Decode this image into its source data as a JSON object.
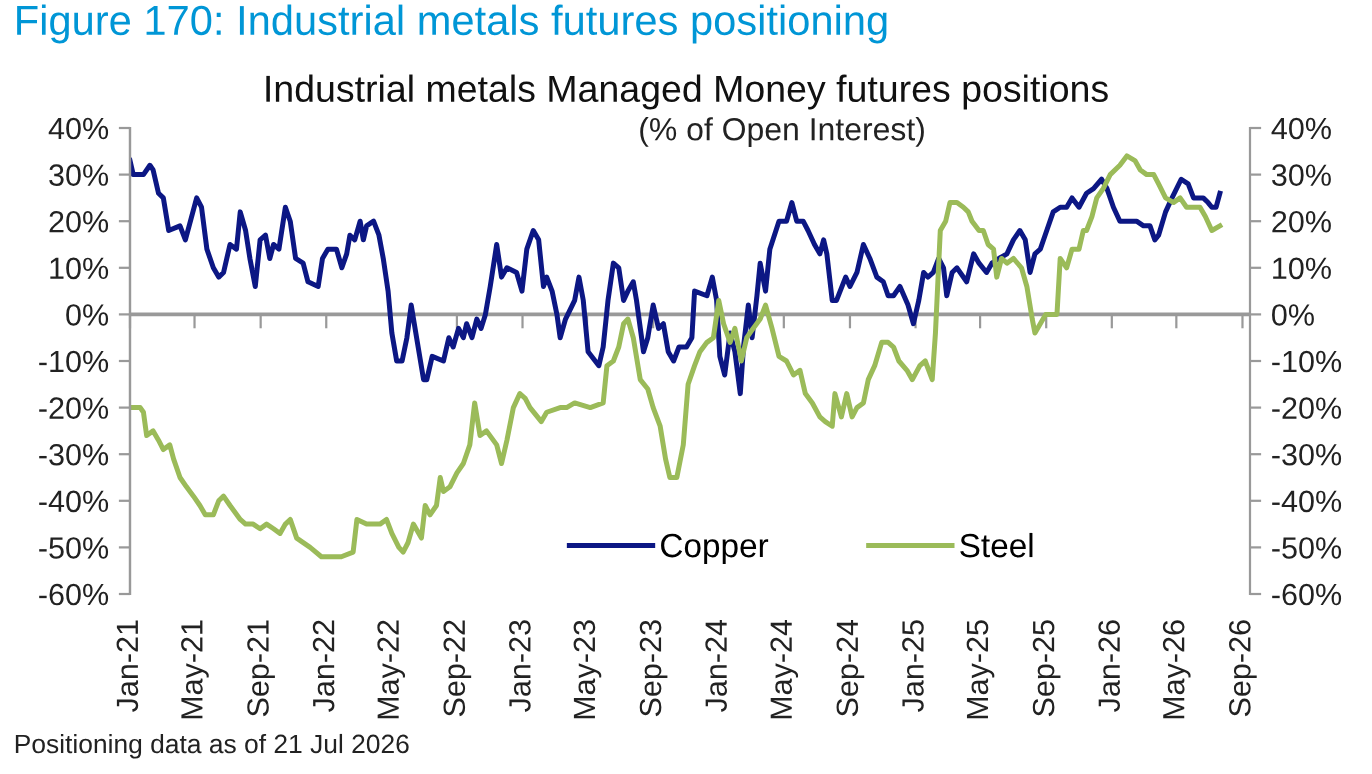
{
  "chart_data": {
    "type": "line",
    "title": "Industrial metals Managed Money futures positions",
    "subtitle": "(% of Open Interest)",
    "annotations": [
      "Figure 170: Industrial metals futures positioning",
      "Positioning data as of 21 Jul 2026"
    ],
    "series": [
      {
        "name": "Copper",
        "color": "#0c1784",
        "x": [
          "2021-01-01",
          "2021-01-07",
          "2021-01-26",
          "2021-02-07",
          "2021-02-13",
          "2021-02-23",
          "2021-03-04",
          "2021-03-14",
          "2021-04-04",
          "2021-04-14",
          "2021-05-05",
          "2021-05-14",
          "2021-05-24",
          "2021-06-05",
          "2021-06-15",
          "2021-06-24",
          "2021-07-06",
          "2021-07-18",
          "2021-07-25",
          "2021-08-04",
          "2021-08-12",
          "2021-08-22",
          "2021-08-31",
          "2021-09-10",
          "2021-09-18",
          "2021-09-25",
          "2021-10-05",
          "2021-10-17",
          "2021-10-26",
          "2021-11-05",
          "2021-11-19",
          "2021-11-28",
          "2021-12-17",
          "2021-12-25",
          "2022-01-04",
          "2022-01-20",
          "2022-01-30",
          "2022-02-08",
          "2022-02-14",
          "2022-02-23",
          "2022-03-05",
          "2022-03-11",
          "2022-03-17",
          "2022-03-30",
          "2022-04-09",
          "2022-04-17",
          "2022-04-26",
          "2022-05-03",
          "2022-05-12",
          "2022-05-22",
          "2022-05-31",
          "2022-06-08",
          "2022-06-18",
          "2022-07-01",
          "2022-07-07",
          "2022-07-17",
          "2022-08-07",
          "2022-08-17",
          "2022-08-25",
          "2022-09-04",
          "2022-09-13",
          "2022-09-19",
          "2022-09-29",
          "2022-10-08",
          "2022-10-16",
          "2022-10-24",
          "2022-11-02",
          "2022-11-14",
          "2022-11-23",
          "2022-12-03",
          "2022-12-21",
          "2022-12-31",
          "2023-01-09",
          "2023-01-21",
          "2023-01-31",
          "2023-02-09",
          "2023-02-15",
          "2023-02-25",
          "2023-03-06",
          "2023-03-12",
          "2023-03-22",
          "2023-04-08",
          "2023-04-16",
          "2023-04-24",
          "2023-05-03",
          "2023-05-23",
          "2023-05-31",
          "2023-06-09",
          "2023-06-19",
          "2023-06-29",
          "2023-07-08",
          "2023-07-16",
          "2023-07-26",
          "2023-08-01",
          "2023-08-14",
          "2023-08-22",
          "2023-09-01",
          "2023-09-11",
          "2023-09-20",
          "2023-09-29",
          "2023-10-09",
          "2023-10-19",
          "2023-11-02",
          "2023-11-12",
          "2023-11-17",
          "2023-12-10",
          "2023-12-20",
          "2023-12-28",
          "2024-01-03",
          "2024-01-12",
          "2024-01-22",
          "2024-01-31",
          "2024-02-10",
          "2024-02-16",
          "2024-02-25",
          "2024-03-03",
          "2024-03-12",
          "2024-03-18",
          "2024-03-28",
          "2024-04-05",
          "2024-04-22",
          "2024-05-06",
          "2024-05-16",
          "2024-05-25",
          "2024-06-06",
          "2024-06-15",
          "2024-06-27",
          "2024-07-07",
          "2024-07-14",
          "2024-07-20",
          "2024-07-30",
          "2024-08-07",
          "2024-08-24",
          "2024-09-01",
          "2024-09-14",
          "2024-09-26",
          "2024-10-08",
          "2024-10-21",
          "2024-11-02",
          "2024-11-11",
          "2024-11-21",
          "2024-12-03",
          "2024-12-18",
          "2024-12-28",
          "2025-01-07",
          "2025-01-16",
          "2025-01-24",
          "2025-02-03",
          "2025-02-13",
          "2025-02-22",
          "2025-02-28",
          "2025-03-10",
          "2025-03-19",
          "2025-04-06",
          "2025-04-19",
          "2025-04-29",
          "2025-05-13",
          "2025-05-23",
          "2025-06-05",
          "2025-06-20",
          "2025-07-02",
          "2025-07-14",
          "2025-07-24",
          "2025-08-02",
          "2025-08-11",
          "2025-08-21",
          "2025-09-02",
          "2025-09-14",
          "2025-09-27",
          "2025-10-09",
          "2025-10-19",
          "2025-11-01",
          "2025-11-15",
          "2025-11-28",
          "2025-12-13",
          "2025-12-23",
          "2026-01-04",
          "2026-01-16",
          "2026-01-29",
          "2026-02-16",
          "2026-03-01",
          "2026-03-13",
          "2026-03-22",
          "2026-03-29",
          "2026-04-11",
          "2026-04-23",
          "2026-05-10",
          "2026-05-23",
          "2026-06-02",
          "2026-06-20",
          "2026-06-29",
          "2026-07-06",
          "2026-07-14",
          "2026-07-21"
        ],
        "values": [
          33,
          30,
          30,
          32,
          31,
          26,
          25,
          18,
          19,
          16,
          25,
          23,
          14,
          10,
          8,
          9,
          15,
          14,
          22,
          18,
          12,
          6,
          16,
          17,
          12,
          15,
          14,
          23,
          20,
          12,
          11,
          7,
          6,
          12,
          14,
          14,
          10,
          13,
          17,
          16,
          20,
          16,
          19,
          20,
          17,
          12,
          5,
          -4,
          -10,
          -10,
          -5,
          2,
          -5,
          -14,
          -14,
          -9,
          -10,
          -5,
          -7,
          -3,
          -5,
          -2,
          -5,
          -1,
          -3,
          0,
          6,
          15,
          8,
          10,
          9,
          5,
          14,
          18,
          16,
          6,
          8,
          5,
          0,
          -5,
          -1,
          3,
          8,
          3,
          -8,
          -11,
          -7,
          3,
          11,
          10,
          3,
          5,
          7,
          3,
          -8,
          -5,
          2,
          -3,
          -2,
          -8,
          -10,
          -7,
          -7,
          -5,
          5,
          4,
          8,
          3,
          -9,
          -13,
          -4,
          -8,
          -17,
          -7,
          2,
          -5,
          4,
          11,
          5,
          14,
          20,
          20,
          24,
          20,
          20,
          18,
          15,
          13,
          16,
          13,
          3,
          3,
          8,
          6,
          9,
          15,
          12,
          8,
          7,
          4,
          4,
          6,
          2,
          -2,
          3,
          9,
          8,
          9,
          12,
          10,
          4,
          9,
          10,
          7,
          13,
          11,
          9,
          11,
          12,
          13,
          16,
          18,
          16,
          9,
          13,
          14,
          18,
          22,
          23,
          23,
          25,
          23,
          26,
          27,
          29,
          27,
          23,
          20,
          20,
          20,
          19,
          19,
          16,
          17,
          22,
          25,
          29,
          28,
          25,
          25,
          24,
          23,
          23,
          26
        ]
      },
      {
        "name": "Steel",
        "color": "#9bbb59",
        "x": [
          "2021-01-01",
          "2021-01-20",
          "2021-01-26",
          "2021-02-01",
          "2021-02-13",
          "2021-02-23",
          "2021-03-04",
          "2021-03-16",
          "2021-03-23",
          "2021-04-04",
          "2021-04-16",
          "2021-04-29",
          "2021-05-11",
          "2021-05-21",
          "2021-06-05",
          "2021-06-15",
          "2021-06-24",
          "2021-07-06",
          "2021-07-25",
          "2021-08-04",
          "2021-08-18",
          "2021-08-31",
          "2021-09-12",
          "2021-09-25",
          "2021-10-07",
          "2021-10-17",
          "2021-10-26",
          "2021-11-07",
          "2021-12-02",
          "2021-12-23",
          "2022-01-02",
          "2022-01-29",
          "2022-02-20",
          "2022-02-27",
          "2022-03-17",
          "2022-04-11",
          "2022-04-23",
          "2022-05-03",
          "2022-05-16",
          "2022-05-24",
          "2022-06-02",
          "2022-06-12",
          "2022-06-27",
          "2022-07-04",
          "2022-07-13",
          "2022-07-25",
          "2022-08-01",
          "2022-08-07",
          "2022-08-19",
          "2022-09-01",
          "2022-09-13",
          "2022-09-25",
          "2022-10-04",
          "2022-10-14",
          "2022-10-26",
          "2022-11-14",
          "2022-11-23",
          "2022-12-03",
          "2022-12-15",
          "2022-12-27",
          "2023-01-06",
          "2023-01-15",
          "2023-02-05",
          "2023-02-15",
          "2023-03-12",
          "2023-03-24",
          "2023-04-08",
          "2023-05-07",
          "2023-05-31",
          "2023-06-07",
          "2023-06-19",
          "2023-06-29",
          "2023-07-08",
          "2023-07-16",
          "2023-07-26",
          "2023-08-08",
          "2023-08-22",
          "2023-09-01",
          "2023-09-14",
          "2023-09-24",
          "2023-10-02",
          "2023-10-15",
          "2023-10-27",
          "2023-11-05",
          "2023-11-17",
          "2023-11-27",
          "2023-12-10",
          "2023-12-22",
          "2024-01-01",
          "2024-01-10",
          "2024-01-22",
          "2024-01-31",
          "2024-02-12",
          "2024-02-22",
          "2024-03-05",
          "2024-03-18",
          "2024-03-28",
          "2024-04-09",
          "2024-04-22",
          "2024-05-06",
          "2024-05-19",
          "2024-05-31",
          "2024-06-10",
          "2024-06-23",
          "2024-07-07",
          "2024-07-17",
          "2024-07-30",
          "2024-08-04",
          "2024-08-16",
          "2024-08-26",
          "2024-09-05",
          "2024-09-14",
          "2024-09-26",
          "2024-10-05",
          "2024-10-17",
          "2024-10-30",
          "2024-11-11",
          "2024-11-21",
          "2024-12-01",
          "2024-12-16",
          "2024-12-26",
          "2025-01-09",
          "2025-01-19",
          "2025-02-01",
          "2025-02-07",
          "2025-02-16",
          "2025-02-26",
          "2025-03-06",
          "2025-03-19",
          "2025-03-31",
          "2025-04-09",
          "2025-04-16",
          "2025-04-29",
          "2025-05-07",
          "2025-05-16",
          "2025-05-26",
          "2025-06-01",
          "2025-06-10",
          "2025-06-20",
          "2025-07-02",
          "2025-07-17",
          "2025-07-27",
          "2025-08-06",
          "2025-08-11",
          "2025-08-21",
          "2025-08-31",
          "2025-09-12",
          "2025-09-21",
          "2025-09-27",
          "2025-10-09",
          "2025-10-19",
          "2025-11-01",
          "2025-11-09",
          "2025-11-15",
          "2025-11-25",
          "2025-12-04",
          "2025-12-16",
          "2025-12-29",
          "2026-01-16",
          "2026-01-29",
          "2026-02-13",
          "2026-02-23",
          "2026-03-07",
          "2026-03-20",
          "2026-03-29",
          "2026-04-11",
          "2026-04-26",
          "2026-05-08",
          "2026-05-20",
          "2026-06-02",
          "2026-06-14",
          "2026-06-24",
          "2026-07-06",
          "2026-07-21"
        ],
        "values": [
          -20,
          -20,
          -21,
          -26,
          -25,
          -27,
          -29,
          -28,
          -31,
          -35,
          -37,
          -39,
          -41,
          -43,
          -43,
          -40,
          -39,
          -41,
          -44,
          -45,
          -45,
          -46,
          -45,
          -46,
          -47,
          -45,
          -44,
          -48,
          -50,
          -52,
          -52,
          -52,
          -51,
          -44,
          -45,
          -45,
          -44,
          -47,
          -50,
          -51,
          -49,
          -45,
          -48,
          -41,
          -43,
          -41,
          -35,
          -38,
          -37,
          -34,
          -32,
          -28,
          -19,
          -26,
          -25,
          -28,
          -32,
          -27,
          -20,
          -17,
          -18,
          -20,
          -23,
          -21,
          -20,
          -20,
          -19,
          -20,
          -19,
          -11,
          -10,
          -7,
          -2,
          -1,
          -5,
          -14,
          -16,
          -20,
          -24,
          -31,
          -35,
          -35,
          -28,
          -15,
          -11,
          -8,
          -6,
          -5,
          3,
          -2,
          -6,
          -3,
          -10,
          -5,
          -3,
          -1,
          2,
          -3,
          -9,
          -10,
          -13,
          -12,
          -17,
          -19,
          -22,
          -23,
          -24,
          -17,
          -22,
          -17,
          -22,
          -20,
          -19,
          -14,
          -11,
          -6,
          -6,
          -7,
          -10,
          -12,
          -14,
          -11,
          -10,
          -14,
          -4,
          18,
          20,
          24,
          24,
          23,
          22,
          20,
          18,
          18,
          15,
          14,
          8,
          12,
          11,
          12,
          10,
          6,
          -1,
          -4,
          -2,
          0,
          0,
          0,
          12,
          10,
          14,
          14,
          18,
          18,
          21,
          25,
          27,
          30,
          32,
          34,
          33,
          31,
          30,
          30,
          28,
          25,
          24,
          25,
          23,
          23,
          23,
          21,
          18,
          19
        ]
      }
    ],
    "xlim": [
      "2021-01-01",
      "2026-09-15"
    ],
    "xticks": [
      {
        "value": "2021-01-01",
        "label": "Jan-21"
      },
      {
        "value": "2021-05-01",
        "label": "May-21"
      },
      {
        "value": "2021-09-01",
        "label": "Sep-21"
      },
      {
        "value": "2022-01-01",
        "label": "Jan-22"
      },
      {
        "value": "2022-05-01",
        "label": "May-22"
      },
      {
        "value": "2022-09-01",
        "label": "Sep-22"
      },
      {
        "value": "2023-01-01",
        "label": "Jan-23"
      },
      {
        "value": "2023-05-01",
        "label": "May-23"
      },
      {
        "value": "2023-09-01",
        "label": "Sep-23"
      },
      {
        "value": "2024-01-01",
        "label": "Jan-24"
      },
      {
        "value": "2024-05-01",
        "label": "May-24"
      },
      {
        "value": "2024-09-01",
        "label": "Sep-24"
      },
      {
        "value": "2025-01-01",
        "label": "Jan-25"
      },
      {
        "value": "2025-05-01",
        "label": "May-25"
      },
      {
        "value": "2025-09-01",
        "label": "Sep-25"
      },
      {
        "value": "2026-01-01",
        "label": "Jan-26"
      },
      {
        "value": "2026-05-01",
        "label": "May-26"
      },
      {
        "value": "2026-09-01",
        "label": "Sep-26"
      }
    ],
    "ylim": [
      -60,
      40
    ],
    "yticks": [
      {
        "value": 40,
        "label": "40%"
      },
      {
        "value": 30,
        "label": "30%"
      },
      {
        "value": 20,
        "label": "20%"
      },
      {
        "value": 10,
        "label": "10%"
      },
      {
        "value": 0,
        "label": "0%"
      },
      {
        "value": -10,
        "label": "-10%"
      },
      {
        "value": -20,
        "label": "-20%"
      },
      {
        "value": -30,
        "label": "-30%"
      },
      {
        "value": -40,
        "label": "-40%"
      },
      {
        "value": -50,
        "label": "-50%"
      },
      {
        "value": -60,
        "label": "-60%"
      }
    ],
    "y2lim": [
      -60,
      40
    ],
    "y2ticks": [
      {
        "value": 40,
        "label": "40%"
      },
      {
        "value": 30,
        "label": "30%"
      },
      {
        "value": 20,
        "label": "20%"
      },
      {
        "value": 10,
        "label": "10%"
      },
      {
        "value": 0,
        "label": "0%"
      },
      {
        "value": -10,
        "label": "-10%"
      },
      {
        "value": -20,
        "label": "-20%"
      },
      {
        "value": -30,
        "label": "-30%"
      },
      {
        "value": -40,
        "label": "-40%"
      },
      {
        "value": -50,
        "label": "-50%"
      },
      {
        "value": -60,
        "label": "-60%"
      }
    ],
    "ref_lines": [
      {
        "axis": "y",
        "value": 0,
        "color": "#999999"
      }
    ],
    "grid": false,
    "legend": "bottom",
    "line_style": "solid"
  }
}
